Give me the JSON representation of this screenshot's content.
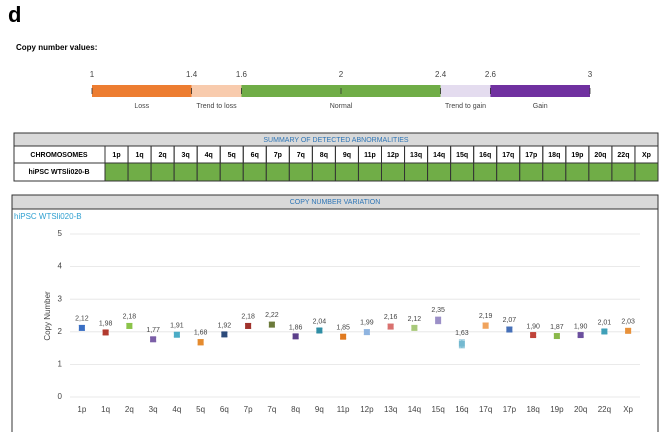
{
  "panel_label": "d",
  "copy_number_legend": {
    "title": "Copy number values:",
    "lim": [
      1,
      3
    ],
    "ticks": [
      1,
      1.4,
      1.6,
      2,
      2.4,
      2.6,
      3
    ],
    "segments": [
      {
        "label": "Loss",
        "from": 1,
        "to": 1.4,
        "color": "#ed7d31"
      },
      {
        "label": "Trend to loss",
        "from": 1.4,
        "to": 1.6,
        "color": "#f8cbad"
      },
      {
        "label": "Normal",
        "from": 1.6,
        "to": 2.4,
        "color": "#70ad47"
      },
      {
        "label": "Trend to gain",
        "from": 2.4,
        "to": 2.6,
        "color": "#e4dcef"
      },
      {
        "label": "Gain",
        "from": 2.6,
        "to": 3,
        "color": "#7030a0"
      }
    ]
  },
  "summary_table": {
    "title": "SUMMARY OF DETECTED ABNORMALITIES",
    "columns": [
      "CHROMOSOMES",
      "1p",
      "1q",
      "2q",
      "3q",
      "4q",
      "5q",
      "6q",
      "7p",
      "7q",
      "8q",
      "9q",
      "11p",
      "12p",
      "13q",
      "14q",
      "15q",
      "16q",
      "17q",
      "17p",
      "18q",
      "19p",
      "20q",
      "22q",
      "Xp"
    ],
    "row_label": "hiPSC WTSli020-B",
    "cell_color": "#70ad47"
  },
  "chart_data": {
    "type": "scatter",
    "section_title": "COPY NUMBER VARIATION",
    "title": "hiPSC WTSli020-B",
    "y_label": "Copy Number",
    "categories": [
      "1p",
      "1q",
      "2q",
      "3q",
      "4q",
      "5q",
      "6q",
      "7p",
      "7q",
      "8q",
      "9q",
      "11p",
      "12p",
      "13q",
      "14q",
      "15q",
      "16q",
      "17q",
      "17p",
      "18q",
      "19p",
      "20q",
      "22q",
      "Xp"
    ],
    "values": [
      2.12,
      1.98,
      2.18,
      1.77,
      1.91,
      1.68,
      1.92,
      2.18,
      2.22,
      1.86,
      2.04,
      1.85,
      1.99,
      2.16,
      2.12,
      2.35,
      1.63,
      2.19,
      2.07,
      1.9,
      1.87,
      1.9,
      2.01,
      2.03
    ],
    "value_labels": [
      "2,12",
      "1,98",
      "2,18",
      "1,77",
      "1,91",
      "1,68",
      "1,92",
      "2,18",
      "2,22",
      "1,86",
      "2,04",
      "1,85",
      "1,99",
      "2,16",
      "2,12",
      "2,35",
      "1,63",
      "2,19",
      "2,07",
      "1,90",
      "1,87",
      "1,90",
      "2,01",
      "2,03"
    ],
    "errors": [
      0.07,
      0.06,
      0.07,
      0.06,
      0.06,
      0.08,
      0.06,
      0.07,
      0.07,
      0.06,
      0.06,
      0.06,
      0.07,
      0.07,
      0.06,
      0.1,
      0.12,
      0.08,
      0.07,
      0.05,
      0.06,
      0.05,
      0.06,
      0.06
    ],
    "colors": [
      "#3a6fc4",
      "#b23a2e",
      "#8bc34a",
      "#7b5ea7",
      "#4bacc6",
      "#e58b2e",
      "#2c4a7a",
      "#a0322c",
      "#6b7a3a",
      "#5b3f8a",
      "#2f8ea5",
      "#e07a20",
      "#8fb4e0",
      "#d9716f",
      "#a8c97a",
      "#9b8fc7",
      "#74b9d0",
      "#f0a35c",
      "#4670b8",
      "#c0443a",
      "#8ab84a",
      "#6b4f9e",
      "#3fa0b8",
      "#e8913a"
    ],
    "ylim": [
      0,
      5
    ],
    "yticks": [
      0,
      1,
      2,
      3,
      4,
      5
    ],
    "grid": true
  }
}
